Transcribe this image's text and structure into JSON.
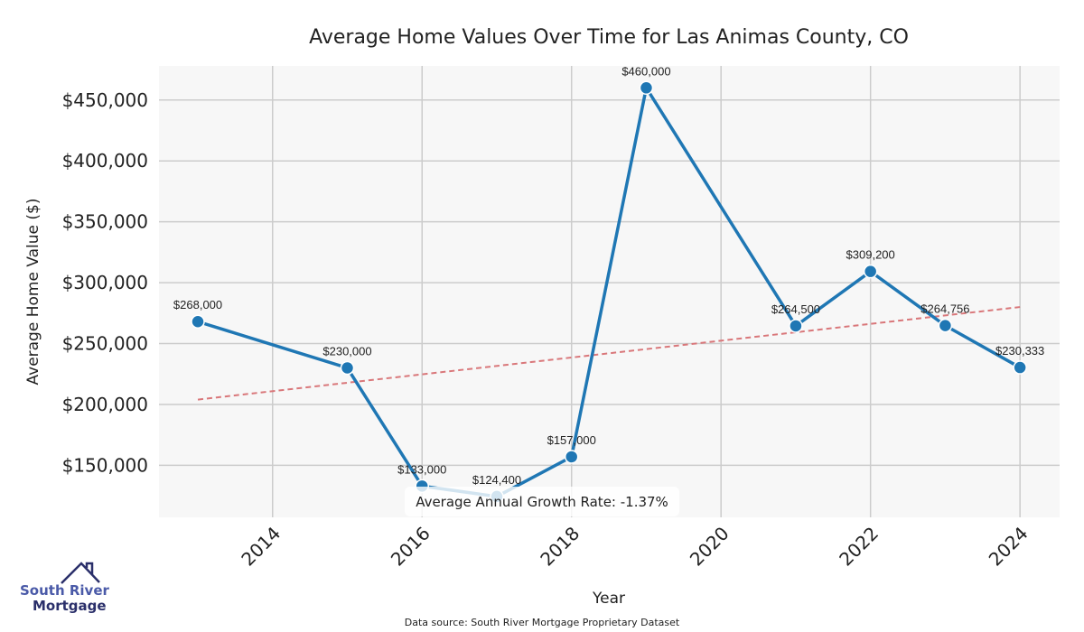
{
  "chart_data": {
    "type": "line",
    "title": "Average Home Values Over Time for Las Animas County, CO",
    "xlabel": "Year",
    "ylabel": "Average Home Value ($)",
    "x": [
      2013,
      2015,
      2016,
      2017,
      2018,
      2019,
      2021,
      2022,
      2023,
      2024
    ],
    "values": [
      268000,
      230000,
      133000,
      124400,
      157000,
      460000,
      264500,
      309200,
      264756,
      230333
    ],
    "data_labels": [
      "$268,000",
      "$230,000",
      "$133,000",
      "$124,400",
      "$157,000",
      "$460,000",
      "$264,500",
      "$309,200",
      "$264,756",
      "$230,333"
    ],
    "xticks": [
      2014,
      2016,
      2018,
      2020,
      2022,
      2024
    ],
    "xtick_labels": [
      "2014",
      "2016",
      "2018",
      "2020",
      "2022",
      "2024"
    ],
    "yticks": [
      150000,
      200000,
      250000,
      300000,
      350000,
      400000,
      450000
    ],
    "ytick_labels": [
      "$150,000",
      "$200,000",
      "$250,000",
      "$300,000",
      "$350,000",
      "$400,000",
      "$450,000"
    ],
    "xlim": [
      2012.48,
      2024.53
    ],
    "ylim": [
      107300,
      478000
    ],
    "grid": true,
    "trend": {
      "x": [
        2013,
        2024
      ],
      "y": [
        204000,
        280000
      ],
      "style": "dashed"
    },
    "annotation": "Average Annual Growth Rate: -1.37%",
    "colors": {
      "line": "#1f77b4",
      "trend": "#d9777a",
      "plot_bg": "#f7f7f7",
      "grid": "#cccccc"
    }
  },
  "footer": {
    "source": "Data source: South River Mortgage Proprietary Dataset"
  },
  "logo": {
    "line1": "South River",
    "line2": "Mortgage"
  }
}
